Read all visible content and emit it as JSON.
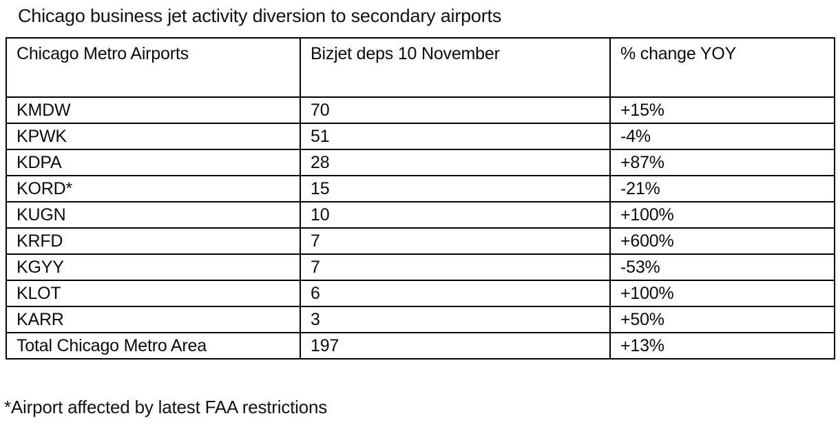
{
  "title": "Chicago business jet activity diversion to secondary airports",
  "table": {
    "columns": [
      "Chicago Metro Airports",
      "Bizjet deps 10 November",
      "% change YOY"
    ],
    "rows": [
      {
        "airport": "KMDW",
        "deps": "70",
        "change": "+15%"
      },
      {
        "airport": "KPWK",
        "deps": "51",
        "change": "-4%"
      },
      {
        "airport": "KDPA",
        "deps": "28",
        "change": "+87%"
      },
      {
        "airport": "KORD*",
        "deps": "15",
        "change": "-21%"
      },
      {
        "airport": "KUGN",
        "deps": "10",
        "change": "+100%"
      },
      {
        "airport": "KRFD",
        "deps": "7",
        "change": "+600%"
      },
      {
        "airport": "KGYY",
        "deps": "7",
        "change": "-53%"
      },
      {
        "airport": "KLOT",
        "deps": "6",
        "change": "+100%"
      },
      {
        "airport": "KARR",
        "deps": "3",
        "change": "+50%"
      },
      {
        "airport": "Total Chicago Metro Area",
        "deps": "197",
        "change": "+13%"
      }
    ]
  },
  "footnote": "*Airport affected by latest FAA restrictions",
  "colors": {
    "text": "#111111",
    "border": "#000000",
    "background": "#ffffff"
  },
  "chart_data": {
    "type": "table",
    "title": "Chicago business jet activity diversion to secondary airports",
    "columns": [
      "Chicago Metro Airports",
      "Bizjet deps 10 November",
      "% change YOY"
    ],
    "rows": [
      [
        "KMDW",
        70,
        "+15%"
      ],
      [
        "KPWK",
        51,
        "-4%"
      ],
      [
        "KDPA",
        28,
        "+87%"
      ],
      [
        "KORD*",
        15,
        "-21%"
      ],
      [
        "KUGN",
        10,
        "+100%"
      ],
      [
        "KRFD",
        7,
        "+600%"
      ],
      [
        "KGYY",
        7,
        "-53%"
      ],
      [
        "KLOT",
        6,
        "+100%"
      ],
      [
        "KARR",
        3,
        "+50%"
      ],
      [
        "Total Chicago Metro Area",
        197,
        "+13%"
      ]
    ],
    "footnote": "*Airport affected by latest FAA restrictions"
  }
}
